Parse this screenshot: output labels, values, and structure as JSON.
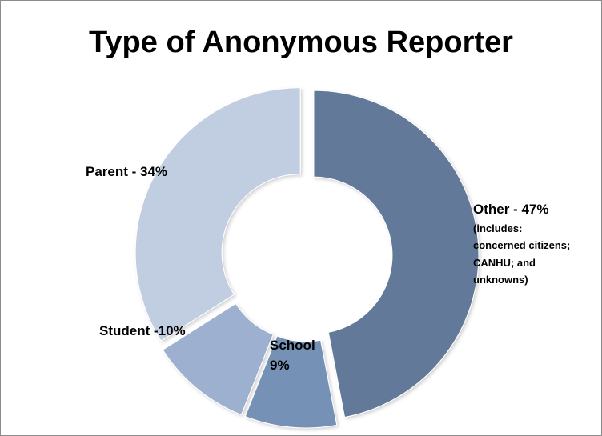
{
  "chart_data": {
    "type": "pie",
    "title": "Type of Anonymous Reporter",
    "categories": [
      "Other",
      "School",
      "Student",
      "Parent"
    ],
    "values": [
      47,
      9,
      10,
      34
    ],
    "colors": [
      "#62799a",
      "#7591b5",
      "#9eb0cf",
      "#c1cde0"
    ],
    "labels": {
      "other": {
        "title": "Other - 47%",
        "note_lines": [
          "(includes:",
          "concerned citizens;",
          "CANHU; and",
          "unknowns)"
        ]
      },
      "school": {
        "lines": [
          "School",
          "9%"
        ]
      },
      "student": "Student  -10%",
      "parent": "Parent - 34%"
    }
  }
}
